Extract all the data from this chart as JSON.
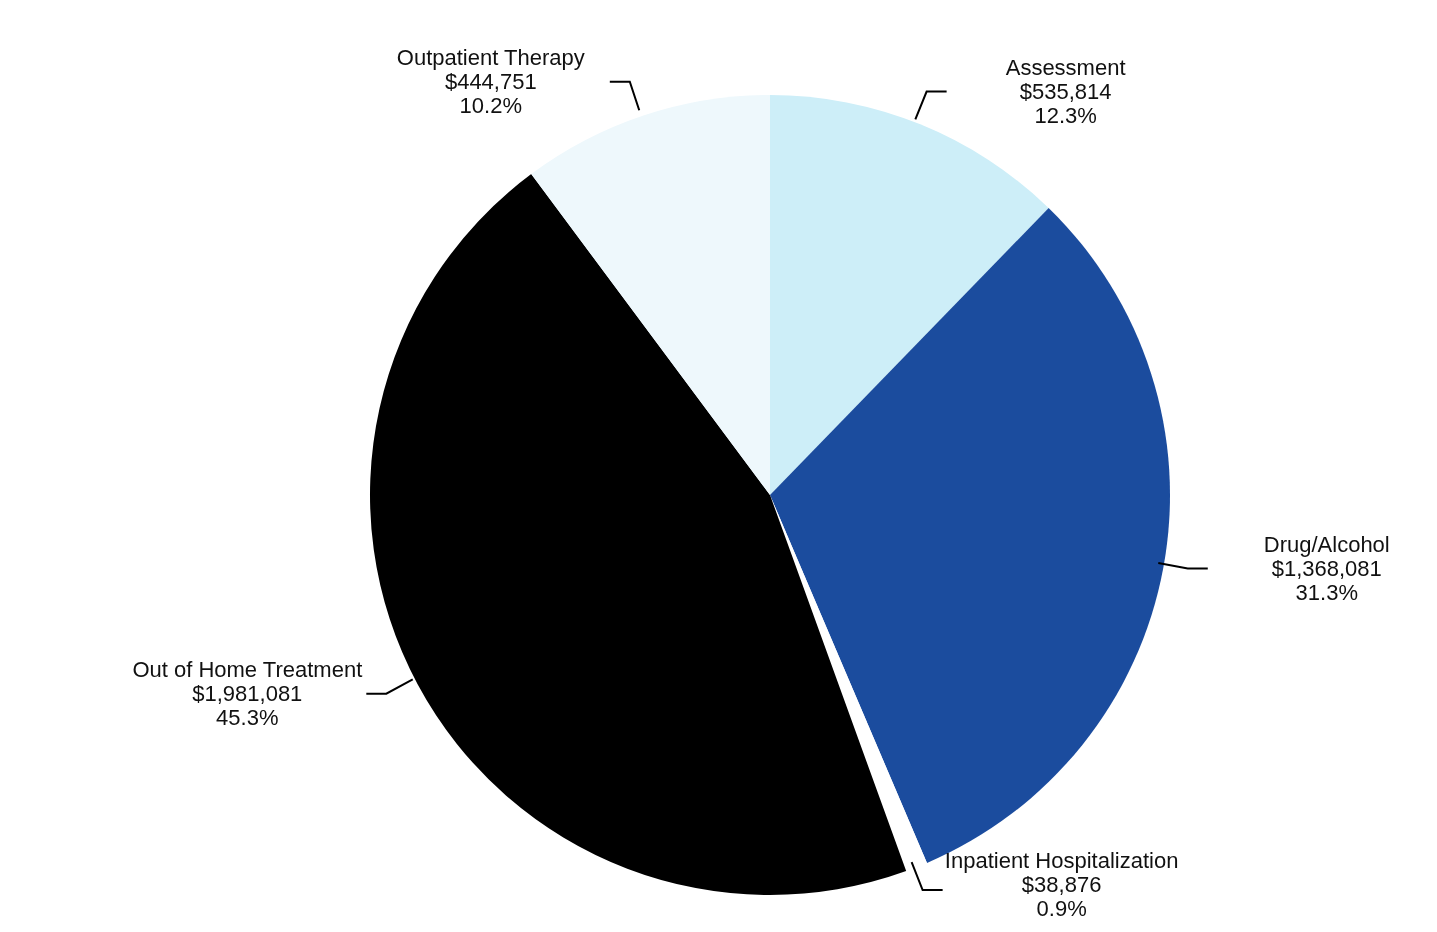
{
  "chart_data": {
    "type": "pie",
    "categories": [
      "Assessment",
      "Drug/Alcohol",
      "Inpatient Hospitalization",
      "Out of Home Treatment",
      "Outpatient Therapy"
    ],
    "values": [
      535814,
      1368081,
      38876,
      1981081,
      444751
    ],
    "value_labels": [
      "$535,814\n12.3%",
      "$1,368,081\n31.3%",
      "$38,876\n0.9%",
      "$1,981,081\n45.3%",
      "$444,751\n10.2%"
    ],
    "colors": [
      "#cdeef8",
      "#1b4c9e",
      "#ffffff",
      "#000000",
      "#eef8fc"
    ],
    "legend": false
  }
}
